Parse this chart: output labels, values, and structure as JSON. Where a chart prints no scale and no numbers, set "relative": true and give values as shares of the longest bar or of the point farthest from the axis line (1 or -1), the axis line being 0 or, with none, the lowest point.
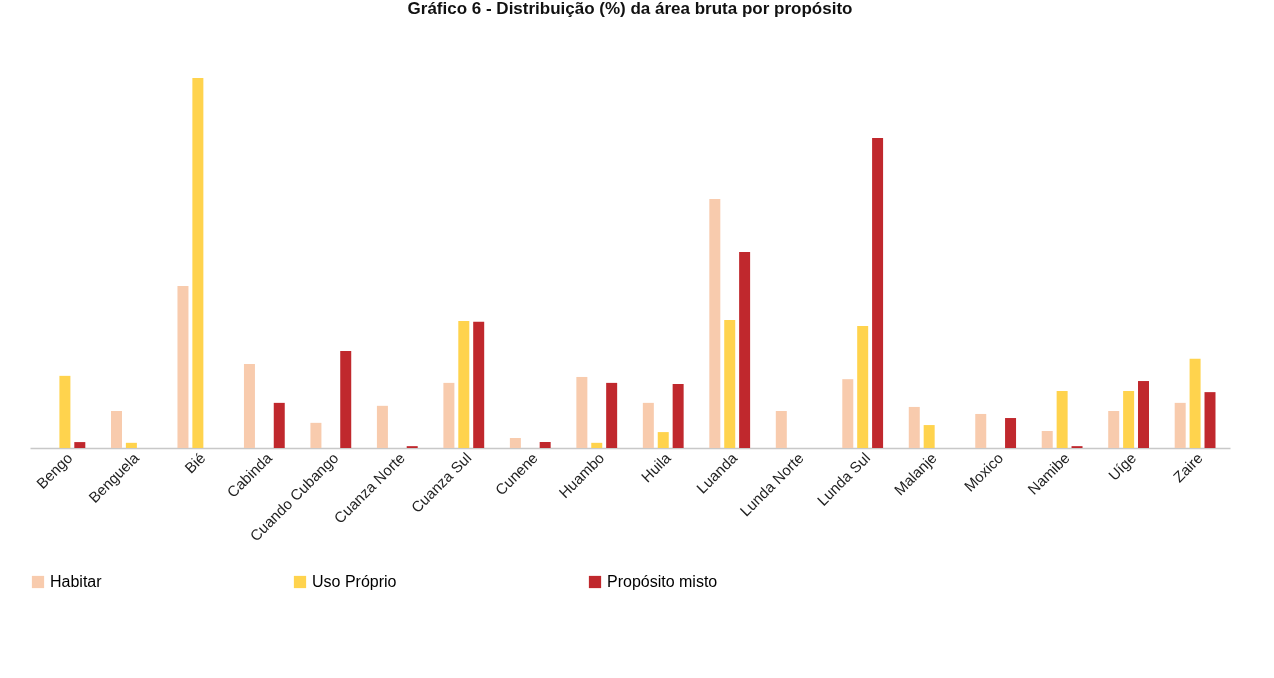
{
  "chart_data": {
    "type": "bar",
    "title": "Gráfico 6 - Distribuição (%) da área bruta por propósito",
    "relative": true,
    "legend": "bottom",
    "grid": false,
    "categories": [
      "Bengo",
      "Benguela",
      "Bié",
      "Cabinda",
      "Cuando Cubango",
      "Cuanza Norte",
      "Cuanza Sul",
      "Cunene",
      "Huambo",
      "Huila",
      "Luanda",
      "Lunda Norte",
      "Lunda Sul",
      "Malanje",
      "Moxico",
      "Namibe",
      "Uíge",
      "Zaire"
    ],
    "series": [
      {
        "name": "Habitar",
        "color": "#f8cbad",
        "values": [
          null,
          0.1,
          0.438,
          0.227,
          0.068,
          0.114,
          0.176,
          0.027,
          0.192,
          0.122,
          0.673,
          0.1,
          0.186,
          0.111,
          0.092,
          0.046,
          0.1,
          0.122
        ]
      },
      {
        "name": "Uso Próprio",
        "color": "#ffd34d",
        "values": [
          0.195,
          0.014,
          1,
          0,
          0,
          0,
          0.343,
          0,
          0.014,
          0.043,
          0.346,
          0,
          0.33,
          0.062,
          0,
          0.154,
          0.154,
          0.241
        ]
      },
      {
        "name": "Propósito misto",
        "color": "#c0282d",
        "values": [
          0.016,
          0,
          0,
          0.122,
          0.262,
          0.005,
          0.341,
          0.016,
          0.176,
          0.173,
          0.53,
          0,
          0.838,
          0,
          0.081,
          0.005,
          0.181,
          0.151
        ]
      }
    ]
  }
}
